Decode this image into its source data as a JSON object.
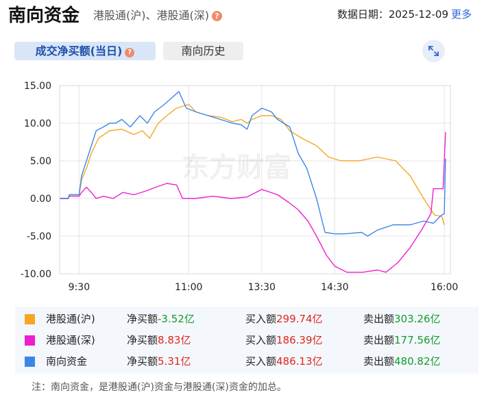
{
  "header": {
    "title": "南向资金",
    "subtitle": "港股通(沪)、港股通(深)",
    "date_label": "数据日期：2025-12-09",
    "more": "更多"
  },
  "tabs": [
    {
      "label": "成交净买额(当日)",
      "active": true
    },
    {
      "label": "南向历史",
      "active": false
    }
  ],
  "watermark": "东方财富",
  "chart_data": {
    "type": "line",
    "ylim": [
      -10,
      15
    ],
    "yticks": [
      "15.00",
      "10.00",
      "5.00",
      "0.00",
      "-5.00",
      "-10.00"
    ],
    "xticks": [
      {
        "label": "9:30",
        "t": 0
      },
      {
        "label": "11:00",
        "t": 90
      },
      {
        "label": "13:30",
        "t": 150
      },
      {
        "label": "14:30",
        "t": 210
      },
      {
        "label": "16:00",
        "t": 300
      }
    ],
    "x_range": [
      -16,
      305
    ],
    "series": [
      {
        "name": "港股通(沪)",
        "color": "#f5a623",
        "points": [
          [
            -16,
            0
          ],
          [
            -9,
            0
          ],
          [
            -8,
            0.5
          ],
          [
            0,
            0.5
          ],
          [
            2,
            2.5
          ],
          [
            6,
            4
          ],
          [
            10,
            6
          ],
          [
            16,
            8
          ],
          [
            25,
            9
          ],
          [
            35,
            9.2
          ],
          [
            45,
            8.5
          ],
          [
            52,
            9
          ],
          [
            58,
            8
          ],
          [
            65,
            10
          ],
          [
            72,
            11
          ],
          [
            80,
            12
          ],
          [
            90,
            12.5
          ],
          [
            96,
            11.5
          ],
          [
            106,
            11
          ],
          [
            116,
            10.8
          ],
          [
            126,
            10.2
          ],
          [
            133,
            10.5
          ],
          [
            138,
            10
          ],
          [
            142,
            10.5
          ],
          [
            150,
            11
          ],
          [
            158,
            11
          ],
          [
            166,
            10.5
          ],
          [
            173,
            9
          ],
          [
            183,
            8
          ],
          [
            195,
            7
          ],
          [
            205,
            5.5
          ],
          [
            215,
            5
          ],
          [
            230,
            5
          ],
          [
            245,
            5.5
          ],
          [
            260,
            5
          ],
          [
            272,
            3
          ],
          [
            283,
            0
          ],
          [
            292,
            -2.2
          ],
          [
            298,
            -2.4
          ],
          [
            300,
            -3.52
          ]
        ]
      },
      {
        "name": "港股通(深)",
        "color": "#ee1ecf",
        "points": [
          [
            -16,
            0
          ],
          [
            -9,
            0
          ],
          [
            -8,
            0.3
          ],
          [
            0,
            0.3
          ],
          [
            2,
            0.8
          ],
          [
            6,
            1.5
          ],
          [
            10,
            0.8
          ],
          [
            14,
            0
          ],
          [
            20,
            0.3
          ],
          [
            28,
            0
          ],
          [
            36,
            0.8
          ],
          [
            45,
            0.5
          ],
          [
            55,
            1
          ],
          [
            63,
            1.5
          ],
          [
            72,
            2
          ],
          [
            80,
            1.8
          ],
          [
            85,
            0
          ],
          [
            95,
            0
          ],
          [
            110,
            0.3
          ],
          [
            125,
            0
          ],
          [
            138,
            0.2
          ],
          [
            150,
            1.2
          ],
          [
            163,
            0.5
          ],
          [
            172,
            -0.5
          ],
          [
            180,
            -1.5
          ],
          [
            188,
            -3
          ],
          [
            195,
            -5
          ],
          [
            203,
            -7.5
          ],
          [
            210,
            -9
          ],
          [
            220,
            -9.8
          ],
          [
            233,
            -9.8
          ],
          [
            245,
            -9.5
          ],
          [
            252,
            -9.8
          ],
          [
            262,
            -8.5
          ],
          [
            272,
            -6.5
          ],
          [
            282,
            -4
          ],
          [
            289,
            -2
          ],
          [
            291,
            1.3
          ],
          [
            299,
            1.3
          ],
          [
            301,
            8.83
          ]
        ]
      },
      {
        "name": "南向资金",
        "color": "#3a86e8",
        "points": [
          [
            -16,
            0
          ],
          [
            -9,
            0
          ],
          [
            -8,
            0.5
          ],
          [
            0,
            0.5
          ],
          [
            2,
            3
          ],
          [
            6,
            5
          ],
          [
            10,
            7
          ],
          [
            14,
            9
          ],
          [
            20,
            9.5
          ],
          [
            25,
            10
          ],
          [
            30,
            10
          ],
          [
            35,
            10.5
          ],
          [
            42,
            9.5
          ],
          [
            50,
            11
          ],
          [
            56,
            10
          ],
          [
            62,
            11.5
          ],
          [
            70,
            12.5
          ],
          [
            77,
            13.5
          ],
          [
            82,
            14.2
          ],
          [
            88,
            12
          ],
          [
            96,
            11.5
          ],
          [
            106,
            11
          ],
          [
            116,
            10.5
          ],
          [
            126,
            10
          ],
          [
            133,
            9.8
          ],
          [
            138,
            9.2
          ],
          [
            142,
            11
          ],
          [
            150,
            12
          ],
          [
            158,
            11.5
          ],
          [
            163,
            10.5
          ],
          [
            168,
            10
          ],
          [
            173,
            9.5
          ],
          [
            180,
            6
          ],
          [
            187,
            4
          ],
          [
            195,
            0
          ],
          [
            202,
            -4.5
          ],
          [
            210,
            -4.7
          ],
          [
            218,
            -4.7
          ],
          [
            232,
            -4.5
          ],
          [
            237,
            -5
          ],
          [
            245,
            -4.2
          ],
          [
            258,
            -3.5
          ],
          [
            272,
            -3.5
          ],
          [
            283,
            -3
          ],
          [
            291,
            -3.3
          ],
          [
            297,
            -2.3
          ],
          [
            300,
            -2
          ],
          [
            301,
            5.31
          ]
        ]
      }
    ]
  },
  "legend": [
    {
      "name": "港股通(沪)",
      "color": "#f5a623",
      "net_label": "净买额",
      "net_value": "-3.52亿",
      "net_dir": "down",
      "buy_label": "买入额",
      "buy_value": "299.74亿",
      "sell_label": "卖出额",
      "sell_value": "303.26亿"
    },
    {
      "name": "港股通(深)",
      "color": "#ee1ecf",
      "net_label": "净买额",
      "net_value": "8.83亿",
      "net_dir": "up",
      "buy_label": "买入额",
      "buy_value": "186.39亿",
      "sell_label": "卖出额",
      "sell_value": "177.56亿"
    },
    {
      "name": "南向资金",
      "color": "#3a86e8",
      "net_label": "净买额",
      "net_value": "5.31亿",
      "net_dir": "up",
      "buy_label": "买入额",
      "buy_value": "486.13亿",
      "sell_label": "卖出额",
      "sell_value": "480.82亿"
    }
  ],
  "note": "注：南向资金，是港股通(沪)资金与港股通(深)资金的加总。"
}
